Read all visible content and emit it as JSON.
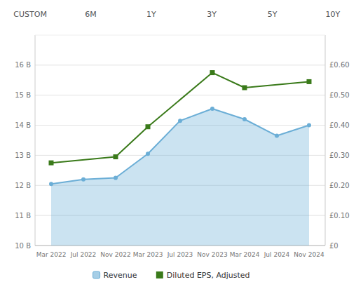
{
  "chart_data": {
    "type": "line",
    "annotations": [
      "CUSTOM",
      "6M",
      "1Y",
      "3Y",
      "5Y",
      "10Y"
    ],
    "categories": [
      "Mar 2022",
      "Jul 2022",
      "Nov 2022",
      "Mar 2023",
      "Jul 2023",
      "Nov 2023",
      "Mar 2024",
      "Jul 2024",
      "Nov 2024"
    ],
    "series": [
      {
        "name": "Revenue",
        "type": "area",
        "color": "#6baed6",
        "marker": "circle",
        "values": [
          12.05,
          12.2,
          12.25,
          13.05,
          14.15,
          14.55,
          14.2,
          13.65,
          14.0
        ]
      },
      {
        "name": "Diluted EPS, Adjusted",
        "type": "line",
        "color": "#3a7a1a",
        "marker": "square",
        "axis": "y2",
        "x": [
          "Mar 2022",
          "Nov 2022",
          "Mar 2023",
          "Nov 2023",
          "Mar 2024",
          "Nov 2024"
        ],
        "values": [
          0.275,
          0.295,
          0.395,
          0.575,
          0.525,
          0.545
        ]
      }
    ],
    "ylim": [
      10,
      17
    ],
    "yticks": [
      {
        "value": 10,
        "label": "10 B"
      },
      {
        "value": 11,
        "label": "11 B"
      },
      {
        "value": 12,
        "label": "12 B"
      },
      {
        "value": 13,
        "label": "13 B"
      },
      {
        "value": 14,
        "label": "14 B"
      },
      {
        "value": 15,
        "label": "15 B"
      },
      {
        "value": 16,
        "label": "16 B"
      }
    ],
    "y2lim": [
      0,
      0.7
    ],
    "y2ticks": [
      {
        "value": 0.0,
        "label": "£0"
      },
      {
        "value": 0.1,
        "label": "£0.10"
      },
      {
        "value": 0.2,
        "label": "£0.20"
      },
      {
        "value": 0.3,
        "label": "£0.30"
      },
      {
        "value": 0.4,
        "label": "£0.40"
      },
      {
        "value": 0.5,
        "label": "£0.50"
      },
      {
        "value": 0.6,
        "label": "£0.60"
      }
    ],
    "grid": true,
    "legend": "bottom"
  }
}
